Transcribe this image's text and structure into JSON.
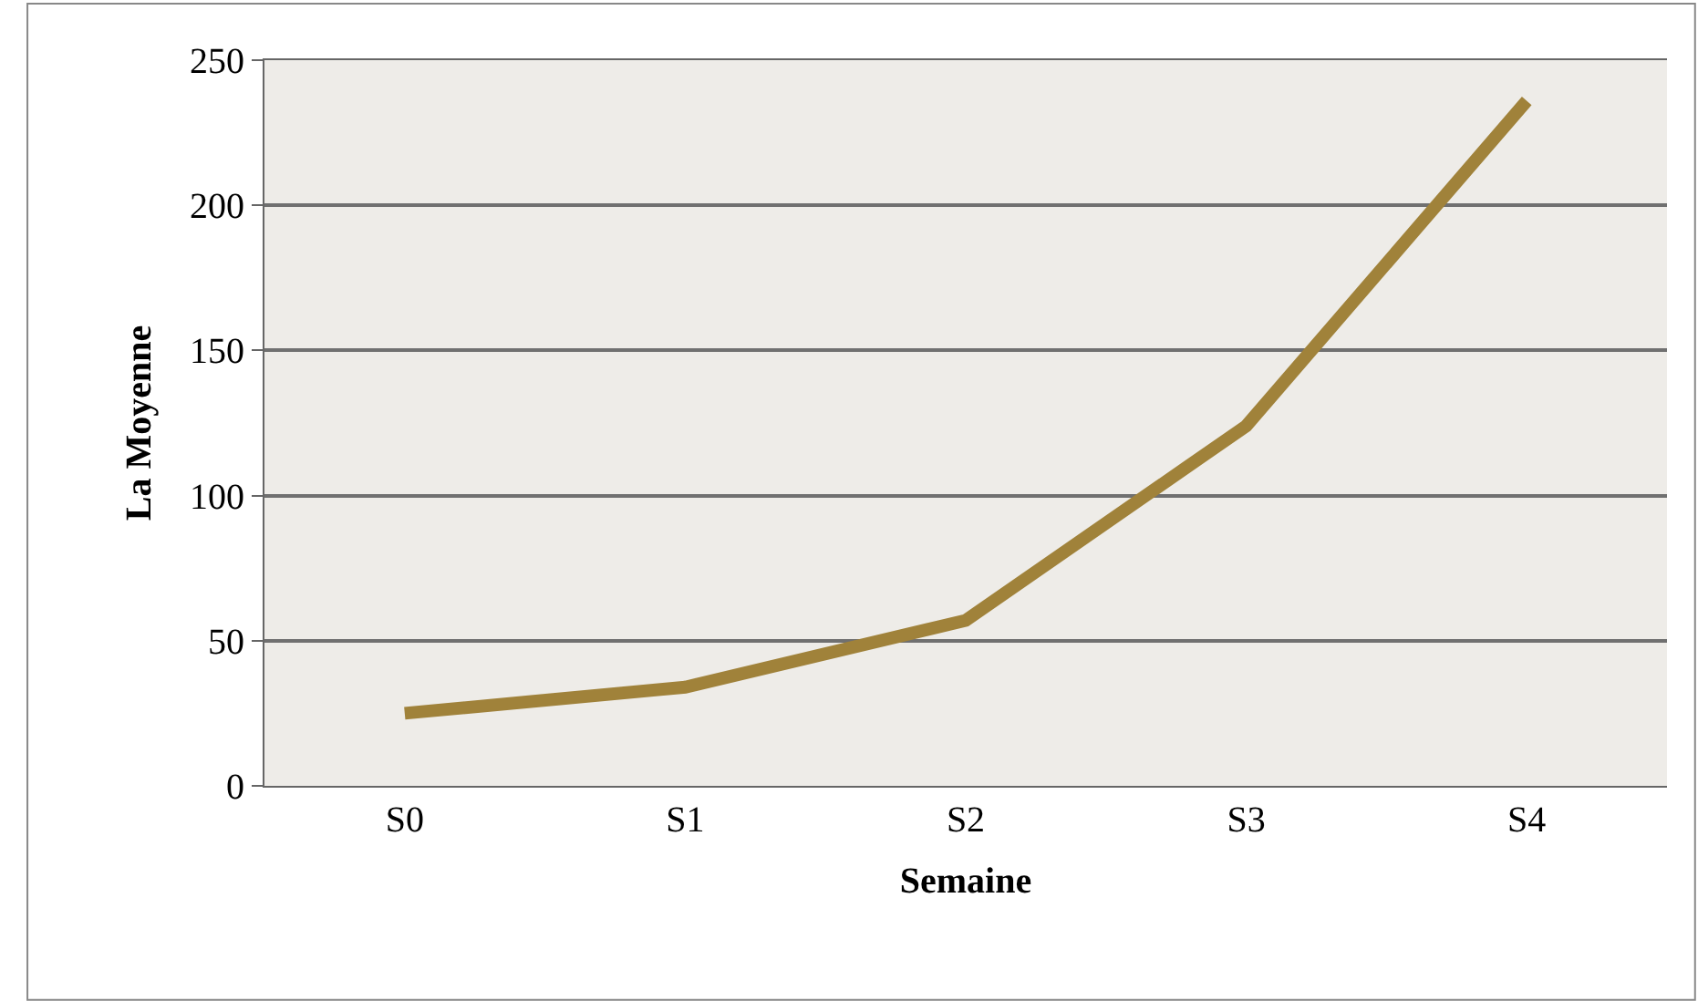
{
  "chart_data": {
    "type": "line",
    "xlabel": "Semaine",
    "ylabel": "La Moyenne",
    "categories": [
      "S0",
      "S1",
      "S2",
      "S3",
      "S4"
    ],
    "series": [
      {
        "color": "#a0823a",
        "values": [
          25,
          34,
          57,
          124,
          236
        ]
      }
    ],
    "ylim": [
      0,
      250
    ],
    "yticks": [
      0,
      50,
      100,
      150,
      200,
      250
    ],
    "grid": "y",
    "marker": "none",
    "line_style": "solid"
  }
}
